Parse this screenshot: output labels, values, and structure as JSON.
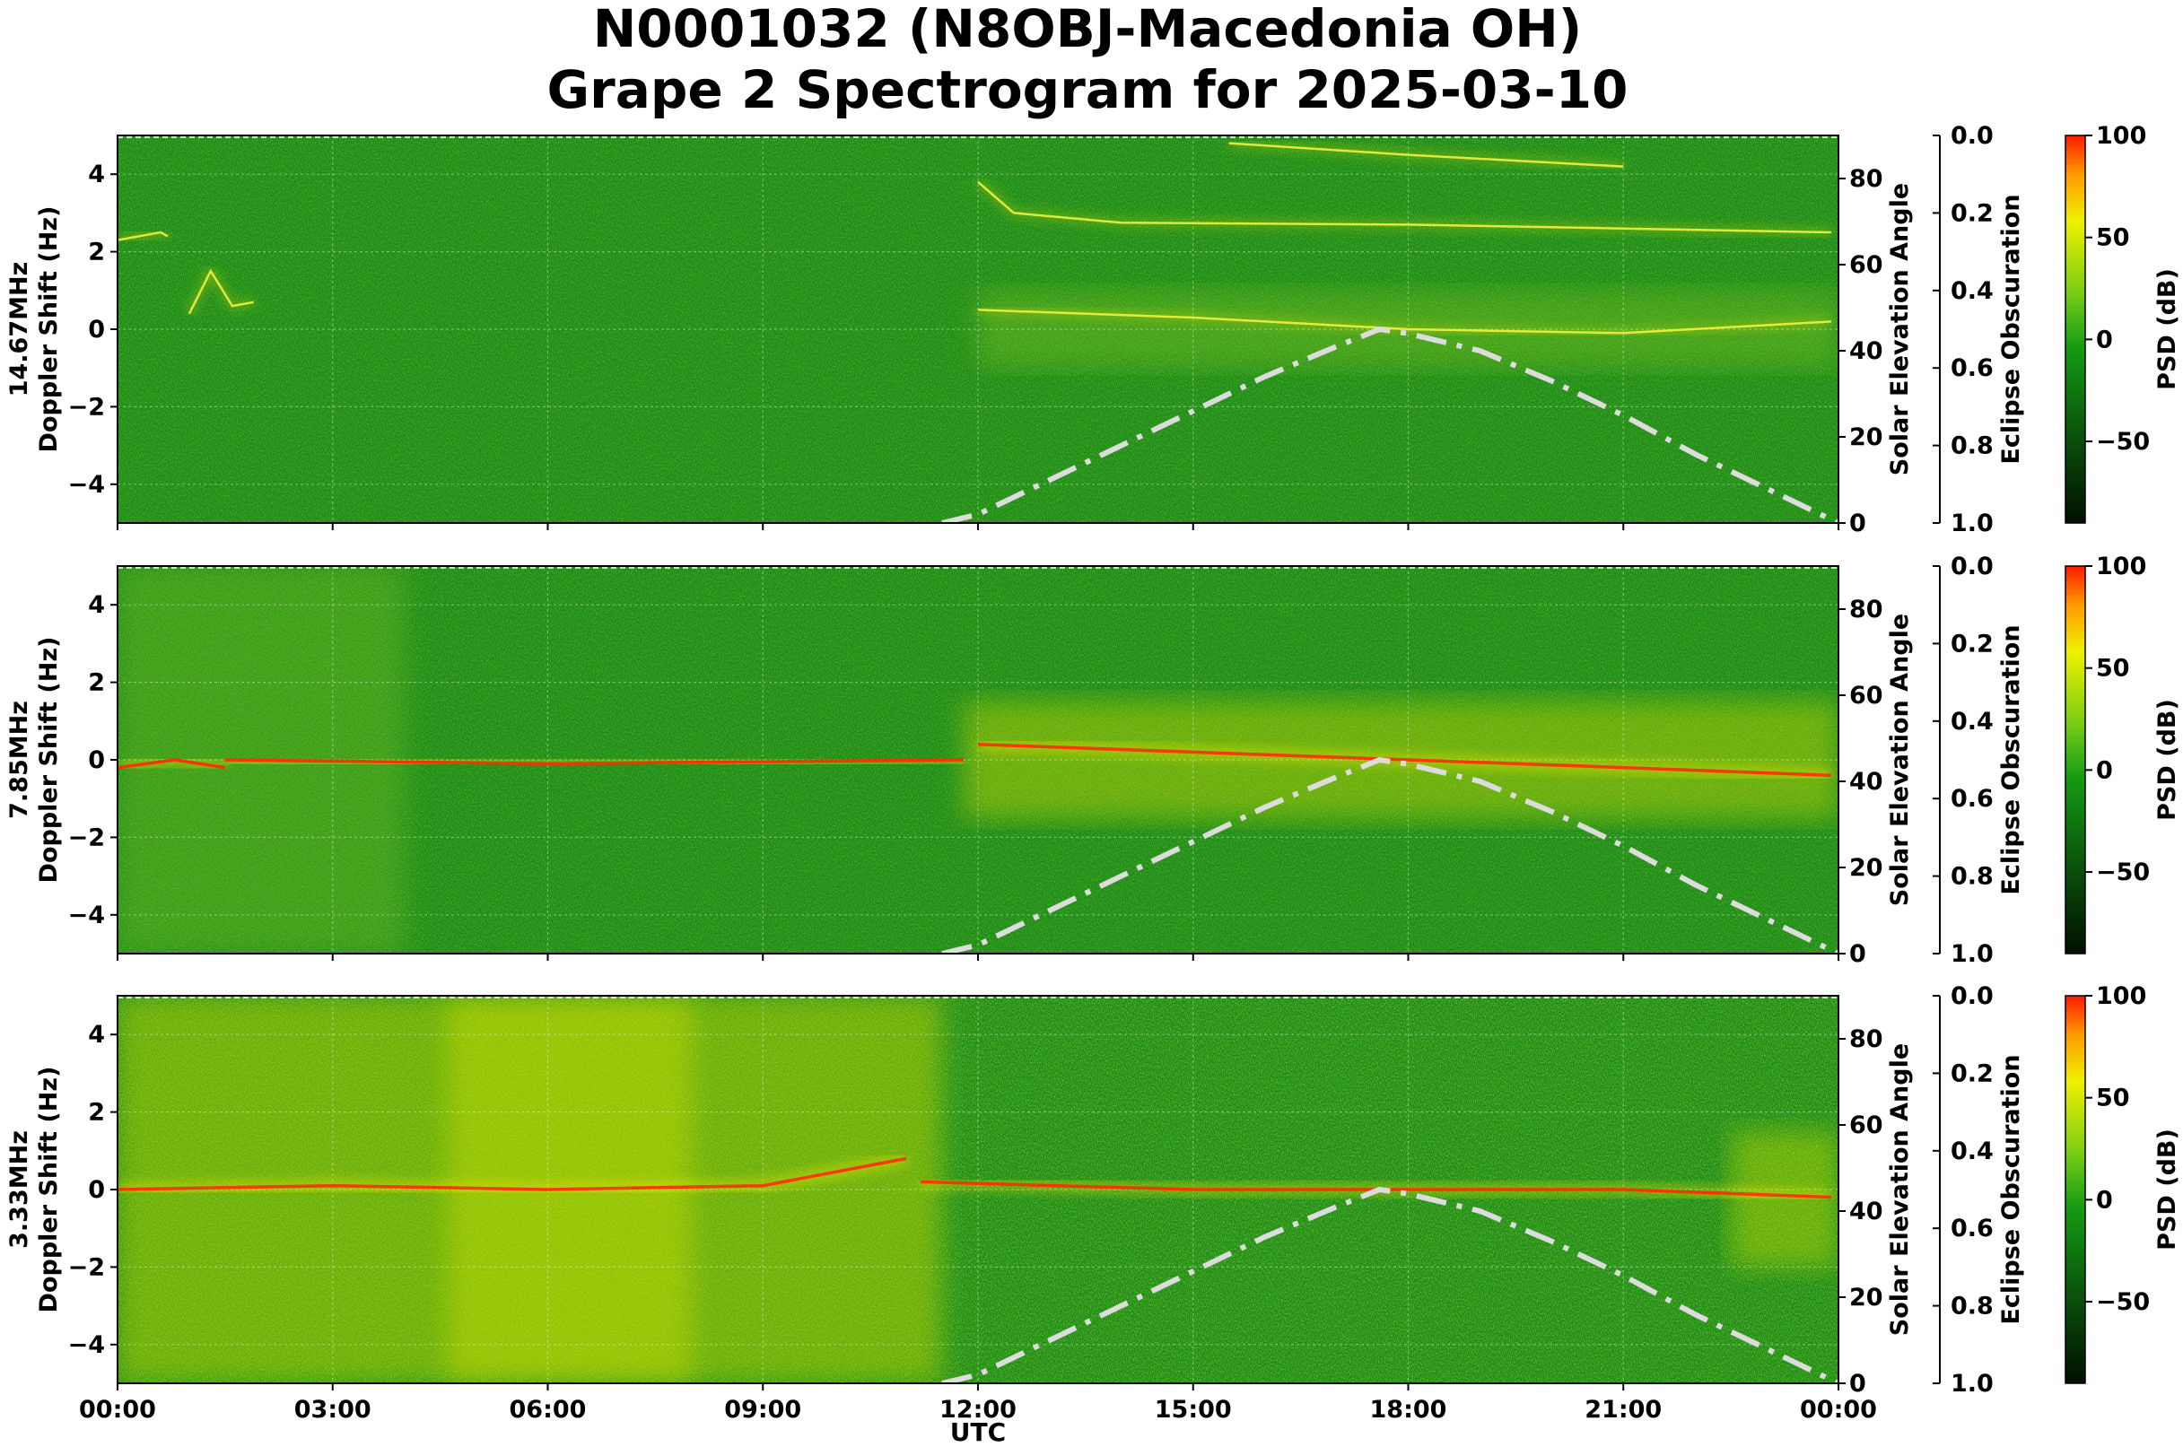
{
  "title": {
    "line1": "N0001032 (N8OBJ-Macedonia OH)",
    "line2": "Grape 2 Spectrogram for 2025-03-10"
  },
  "colors": {
    "bg_green": "#1a8a1a",
    "mid_green": "#3aa81e",
    "yellow": "#e6e600",
    "red": "#ff2a00",
    "solar_curve": "#dcdcdc"
  },
  "chart_data": [
    {
      "type": "heatmap",
      "panel_label": "14.67MHz",
      "ylabel": "Doppler Shift (Hz)",
      "ylim": [
        -5,
        5
      ],
      "yticks": [
        "4",
        "2",
        "0",
        "−2",
        "−4"
      ],
      "y2label": "Solar Elevation Angle",
      "y2lim": [
        0,
        90
      ],
      "y2ticks": [
        "80",
        "60",
        "40",
        "20",
        "0"
      ],
      "y3label": "Eclipse Obscuration",
      "y3lim": [
        0.0,
        1.0
      ],
      "y3ticks": [
        "0.0",
        "0.2",
        "0.4",
        "0.6",
        "0.8",
        "1.0"
      ],
      "colorbar_label": "PSD (dB)",
      "colorbar_ticks": [
        "100",
        "50",
        "0",
        "−50"
      ],
      "colorbar_range": [
        -90,
        100
      ],
      "grid": true,
      "traces": [
        {
          "name": "main",
          "points": [
            [
              0,
              2.3
            ],
            [
              0.6,
              2.5
            ],
            [
              0.7,
              2.4
            ]
          ]
        },
        {
          "name": "fluctuating",
          "points": [
            [
              1.0,
              0.4
            ],
            [
              1.3,
              1.5
            ],
            [
              1.6,
              0.6
            ],
            [
              1.9,
              0.7
            ]
          ]
        },
        {
          "name": "upper",
          "points": [
            [
              12.0,
              3.8
            ],
            [
              12.5,
              3.0
            ],
            [
              14.0,
              2.75
            ],
            [
              18.0,
              2.7
            ],
            [
              21.0,
              2.6
            ],
            [
              23.9,
              2.5
            ]
          ]
        },
        {
          "name": "top",
          "points": [
            [
              15.5,
              4.8
            ],
            [
              18.0,
              4.5
            ],
            [
              21.0,
              4.2
            ]
          ]
        },
        {
          "name": "zero",
          "points": [
            [
              12.0,
              0.5
            ],
            [
              15.0,
              0.3
            ],
            [
              18.0,
              0.0
            ],
            [
              21.0,
              -0.1
            ],
            [
              23.9,
              0.2
            ]
          ]
        }
      ]
    },
    {
      "type": "heatmap",
      "panel_label": "7.85MHz",
      "ylabel": "Doppler Shift (Hz)",
      "ylim": [
        -5,
        5
      ],
      "yticks": [
        "4",
        "2",
        "0",
        "−2",
        "−4"
      ],
      "y2label": "Solar Elevation Angle",
      "y2lim": [
        0,
        90
      ],
      "y2ticks": [
        "80",
        "60",
        "40",
        "20",
        "0"
      ],
      "y3label": "Eclipse Obscuration",
      "y3lim": [
        0.0,
        1.0
      ],
      "y3ticks": [
        "0.0",
        "0.2",
        "0.4",
        "0.6",
        "0.8",
        "1.0"
      ],
      "colorbar_label": "PSD (dB)",
      "colorbar_ticks": [
        "100",
        "50",
        "0",
        "−50"
      ],
      "colorbar_range": [
        -90,
        100
      ],
      "grid": true,
      "traces": [
        {
          "name": "early",
          "points": [
            [
              0,
              -0.2
            ],
            [
              0.8,
              0.0
            ],
            [
              1.5,
              -0.2
            ]
          ]
        },
        {
          "name": "night",
          "points": [
            [
              1.5,
              0.0
            ],
            [
              6.0,
              -0.1
            ],
            [
              11.8,
              0.0
            ]
          ]
        },
        {
          "name": "day",
          "points": [
            [
              12.0,
              0.4
            ],
            [
              15.0,
              0.2
            ],
            [
              18.0,
              0.0
            ],
            [
              21.0,
              -0.2
            ],
            [
              23.9,
              -0.4
            ]
          ]
        }
      ]
    },
    {
      "type": "heatmap",
      "panel_label": "3.33MHz",
      "ylabel": "Doppler Shift (Hz)",
      "ylim": [
        -5,
        5
      ],
      "yticks": [
        "4",
        "2",
        "0",
        "−2",
        "−4"
      ],
      "y2label": "Solar Elevation Angle",
      "y2lim": [
        0,
        90
      ],
      "y2ticks": [
        "80",
        "60",
        "40",
        "20",
        "0"
      ],
      "y3label": "Eclipse Obscuration",
      "y3lim": [
        0.0,
        1.0
      ],
      "y3ticks": [
        "0.0",
        "0.2",
        "0.4",
        "0.6",
        "0.8",
        "1.0"
      ],
      "colorbar_label": "PSD (dB)",
      "colorbar_ticks": [
        "100",
        "50",
        "0",
        "−50"
      ],
      "colorbar_range": [
        -90,
        100
      ],
      "grid": true,
      "traces": [
        {
          "name": "night",
          "points": [
            [
              0,
              0.0
            ],
            [
              3.0,
              0.1
            ],
            [
              6.0,
              0.0
            ],
            [
              9.0,
              0.1
            ],
            [
              11.0,
              0.8
            ]
          ]
        },
        {
          "name": "day",
          "points": [
            [
              11.2,
              0.2
            ],
            [
              15.0,
              0.0
            ],
            [
              18.0,
              0.0
            ],
            [
              21.0,
              0.0
            ],
            [
              23.9,
              -0.2
            ]
          ]
        }
      ]
    }
  ],
  "solar_elevation": {
    "hours": [
      11.5,
      12,
      13,
      14,
      15,
      16,
      17,
      17.6,
      18,
      19,
      20,
      21,
      22,
      23,
      24
    ],
    "degrees": [
      0,
      2,
      10,
      18,
      26,
      34,
      41,
      45,
      44,
      40,
      33,
      25,
      16,
      8,
      0
    ]
  },
  "x_axis": {
    "label": "UTC",
    "range_hours": [
      0,
      24
    ],
    "ticks": [
      "00:00",
      "03:00",
      "06:00",
      "09:00",
      "12:00",
      "15:00",
      "18:00",
      "21:00",
      "00:00"
    ]
  }
}
